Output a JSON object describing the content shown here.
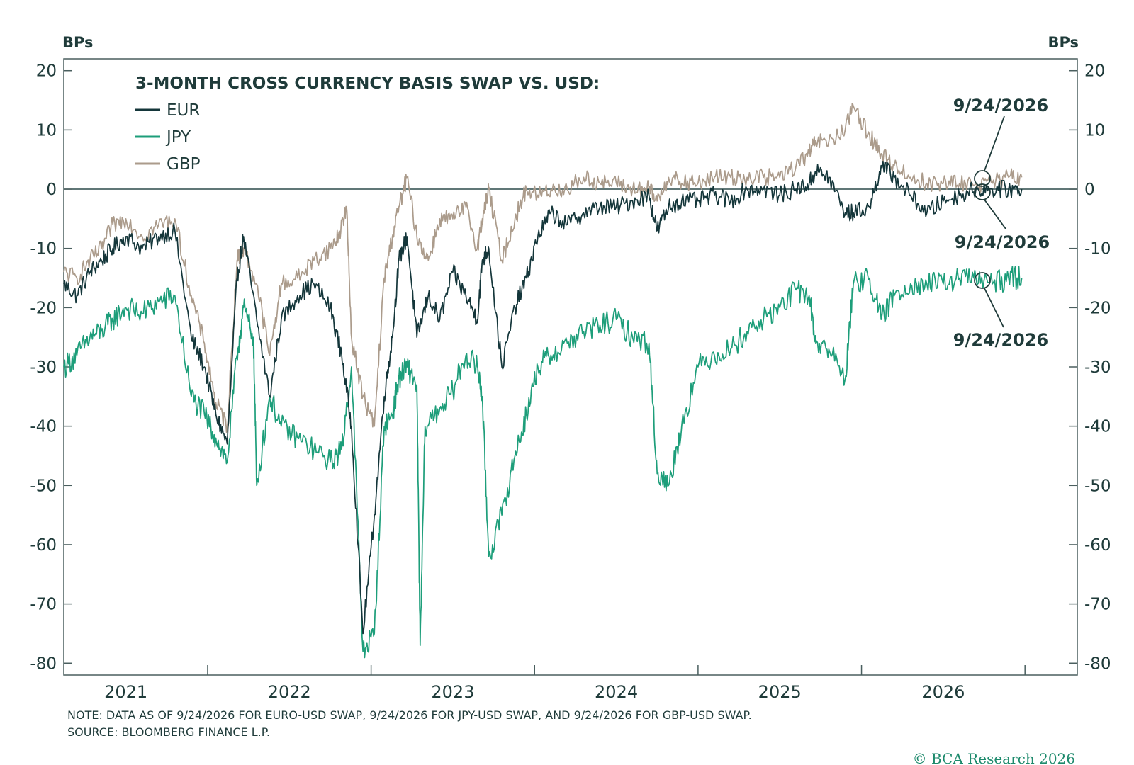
{
  "chart_data": {
    "type": "line",
    "title": "3-MONTH CROSS CURRENCY BASIS SWAP VS. USD:",
    "ylabel_left": "BPs",
    "ylabel_right": "BPs",
    "ylim": [
      -82,
      22
    ],
    "yticks": [
      20,
      10,
      0,
      -10,
      -20,
      -30,
      -40,
      -50,
      -60,
      -70,
      -80
    ],
    "xlim": [
      2020.62,
      2026.82
    ],
    "year_ticks": [
      2021,
      2022,
      2023,
      2024,
      2025,
      2026
    ],
    "year_labels": [
      "2021",
      "2022",
      "2023",
      "2024",
      "2025",
      "2026"
    ],
    "grid": false,
    "zero_line": true,
    "legend_position": "top-left",
    "series": [
      {
        "name": "EUR",
        "color": "#14363a",
        "x": [
          2020.62,
          2020.7,
          2020.78,
          2020.85,
          2020.92,
          2021.0,
          2021.1,
          2021.2,
          2021.3,
          2021.4,
          2021.48,
          2021.55,
          2021.62,
          2021.68,
          2021.72,
          2021.8,
          2021.88,
          2021.95,
          2022.05,
          2022.15,
          2022.25,
          2022.32,
          2022.38,
          2022.45,
          2022.52,
          2022.58,
          2022.63,
          2022.67,
          2022.72,
          2022.78,
          2022.85,
          2022.92,
          2023.0,
          2023.08,
          2023.15,
          2023.18,
          2023.22,
          2023.3,
          2023.38,
          2023.45,
          2023.52,
          2023.6,
          2023.7,
          2023.8,
          2023.9,
          2024.0,
          2024.1,
          2024.2,
          2024.25,
          2024.32,
          2024.4,
          2024.5,
          2024.6,
          2024.7,
          2024.8,
          2024.9,
          2025.0,
          2025.1,
          2025.18,
          2025.22,
          2025.3,
          2025.4,
          2025.45,
          2025.55,
          2025.62,
          2025.7,
          2025.8,
          2025.9,
          2026.0,
          2026.1,
          2026.2,
          2026.3,
          2026.4,
          2026.48
        ],
        "y": [
          -16,
          -18,
          -14,
          -12,
          -10,
          -8,
          -10,
          -8,
          -7,
          -25,
          -30,
          -38,
          -43,
          -15,
          -8,
          -22,
          -35,
          -22,
          -18,
          -16,
          -20,
          -28,
          -40,
          -75,
          -55,
          -35,
          -25,
          -12,
          -8,
          -25,
          -18,
          -22,
          -14,
          -18,
          -22,
          -12,
          -10,
          -30,
          -20,
          -15,
          -8,
          -4,
          -6,
          -4,
          -3,
          -3,
          -2,
          -1,
          -7,
          -3,
          -2,
          -2,
          -1,
          -2,
          0,
          0,
          -1,
          0,
          1,
          3,
          2,
          -4,
          -4,
          -3,
          4,
          2,
          -1,
          -4,
          -2,
          -1,
          0,
          0,
          0,
          0
        ]
      },
      {
        "name": "JPY",
        "color": "#1d9e7a",
        "x": [
          2020.62,
          2020.7,
          2020.78,
          2020.85,
          2020.92,
          2021.0,
          2021.1,
          2021.2,
          2021.3,
          2021.4,
          2021.48,
          2021.55,
          2021.62,
          2021.68,
          2021.72,
          2021.78,
          2021.8,
          2021.88,
          2021.95,
          2022.05,
          2022.15,
          2022.25,
          2022.32,
          2022.38,
          2022.45,
          2022.52,
          2022.58,
          2022.63,
          2022.67,
          2022.72,
          2022.78,
          2022.8,
          2022.83,
          2022.92,
          2023.0,
          2023.08,
          2023.15,
          2023.18,
          2023.22,
          2023.3,
          2023.38,
          2023.45,
          2023.52,
          2023.6,
          2023.7,
          2023.8,
          2023.9,
          2024.0,
          2024.1,
          2024.2,
          2024.25,
          2024.32,
          2024.4,
          2024.5,
          2024.6,
          2024.7,
          2024.8,
          2024.9,
          2025.0,
          2025.1,
          2025.18,
          2025.22,
          2025.3,
          2025.4,
          2025.45,
          2025.55,
          2025.62,
          2025.7,
          2025.8,
          2025.9,
          2026.0,
          2026.1,
          2026.2,
          2026.3,
          2026.4,
          2026.48
        ],
        "y": [
          -30,
          -28,
          -25,
          -24,
          -22,
          -20,
          -21,
          -19,
          -18,
          -35,
          -38,
          -42,
          -46,
          -28,
          -20,
          -25,
          -50,
          -35,
          -40,
          -42,
          -44,
          -46,
          -44,
          -30,
          -78,
          -75,
          -40,
          -38,
          -32,
          -30,
          -33,
          -77,
          -40,
          -37,
          -34,
          -28,
          -30,
          -35,
          -62,
          -55,
          -45,
          -38,
          -30,
          -28,
          -26,
          -24,
          -23,
          -22,
          -25,
          -26,
          -48,
          -50,
          -40,
          -30,
          -28,
          -27,
          -24,
          -22,
          -20,
          -17,
          -18,
          -26,
          -27,
          -32,
          -16,
          -15,
          -22,
          -18,
          -16,
          -16,
          -16,
          -15,
          -15,
          -16,
          -15,
          -15
        ]
      },
      {
        "name": "GBP",
        "color": "#ab9b8b",
        "x": [
          2020.62,
          2020.7,
          2020.78,
          2020.85,
          2020.92,
          2021.0,
          2021.1,
          2021.2,
          2021.3,
          2021.4,
          2021.48,
          2021.55,
          2021.62,
          2021.68,
          2021.72,
          2021.8,
          2021.88,
          2021.95,
          2022.05,
          2022.15,
          2022.25,
          2022.3,
          2022.35,
          2022.38,
          2022.45,
          2022.52,
          2022.58,
          2022.63,
          2022.67,
          2022.72,
          2022.78,
          2022.85,
          2022.92,
          2023.0,
          2023.08,
          2023.15,
          2023.18,
          2023.22,
          2023.3,
          2023.38,
          2023.45,
          2023.52,
          2023.6,
          2023.7,
          2023.8,
          2023.9,
          2024.0,
          2024.1,
          2024.2,
          2024.25,
          2024.32,
          2024.4,
          2024.5,
          2024.6,
          2024.7,
          2024.8,
          2024.9,
          2025.0,
          2025.1,
          2025.18,
          2025.22,
          2025.3,
          2025.4,
          2025.45,
          2025.55,
          2025.62,
          2025.7,
          2025.8,
          2025.9,
          2026.0,
          2026.1,
          2026.2,
          2026.3,
          2026.4,
          2026.48
        ],
        "y": [
          -14,
          -15,
          -12,
          -10,
          -6,
          -5,
          -8,
          -6,
          -5,
          -18,
          -26,
          -36,
          -40,
          -12,
          -10,
          -16,
          -28,
          -16,
          -15,
          -12,
          -10,
          -8,
          -3,
          -25,
          -35,
          -40,
          -15,
          -8,
          -3,
          2,
          -8,
          -12,
          -5,
          -5,
          -3,
          -10,
          -5,
          0,
          -12,
          -5,
          0,
          -1,
          0,
          0,
          2,
          1,
          1,
          0,
          0,
          -2,
          2,
          1,
          1,
          2,
          2,
          2,
          2,
          2,
          4,
          6,
          8,
          8,
          10,
          14,
          9,
          6,
          4,
          2,
          1,
          1,
          1,
          1,
          1,
          2,
          2
        ]
      }
    ],
    "annotations": [
      "9/24/2026",
      "9/24/2026",
      "9/24/2026"
    ],
    "note": "NOTE: DATA AS OF 9/24/2026 FOR EURO-USD SWAP, 9/24/2026 FOR JPY-USD SWAP, AND 9/24/2026 FOR GBP-USD SWAP.",
    "source": "SOURCE: BLOOMBERG FINANCE L.P.",
    "credit": "© BCA Research 2026"
  }
}
